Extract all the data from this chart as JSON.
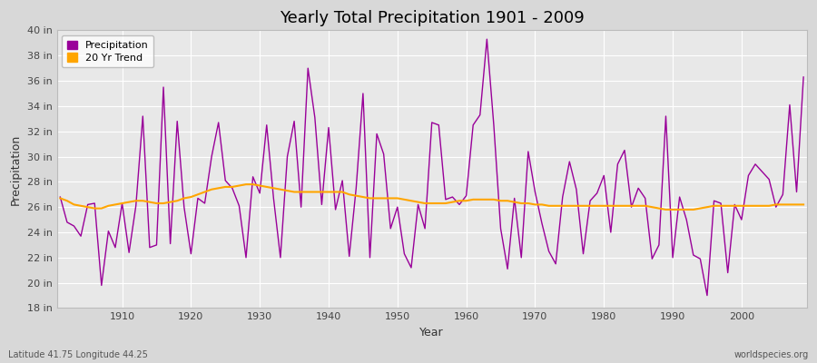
{
  "title": "Yearly Total Precipitation 1901 - 2009",
  "xlabel": "Year",
  "ylabel": "Precipitation",
  "lat_lon_label": "Latitude 41.75 Longitude 44.25",
  "source_label": "worldspecies.org",
  "years": [
    1901,
    1902,
    1903,
    1904,
    1905,
    1906,
    1907,
    1908,
    1909,
    1910,
    1911,
    1912,
    1913,
    1914,
    1915,
    1916,
    1917,
    1918,
    1919,
    1920,
    1921,
    1922,
    1923,
    1924,
    1925,
    1926,
    1927,
    1928,
    1929,
    1930,
    1931,
    1932,
    1933,
    1934,
    1935,
    1936,
    1937,
    1938,
    1939,
    1940,
    1941,
    1942,
    1943,
    1944,
    1945,
    1946,
    1947,
    1948,
    1949,
    1950,
    1951,
    1952,
    1953,
    1954,
    1955,
    1956,
    1957,
    1958,
    1959,
    1960,
    1961,
    1962,
    1963,
    1964,
    1965,
    1966,
    1967,
    1968,
    1969,
    1970,
    1971,
    1972,
    1973,
    1974,
    1975,
    1976,
    1977,
    1978,
    1979,
    1980,
    1981,
    1982,
    1983,
    1984,
    1985,
    1986,
    1987,
    1988,
    1989,
    1990,
    1991,
    1992,
    1993,
    1994,
    1995,
    1996,
    1997,
    1998,
    1999,
    2000,
    2001,
    2002,
    2003,
    2004,
    2005,
    2006,
    2007,
    2008,
    2009
  ],
  "precipitation": [
    26.8,
    24.8,
    24.5,
    23.7,
    26.2,
    26.3,
    19.8,
    24.1,
    22.8,
    26.3,
    22.4,
    26.1,
    33.2,
    22.8,
    23.0,
    35.5,
    23.1,
    32.8,
    26.0,
    22.3,
    26.7,
    26.3,
    30.0,
    32.7,
    28.1,
    27.5,
    26.1,
    22.0,
    28.4,
    27.1,
    32.5,
    26.7,
    22.0,
    30.0,
    32.8,
    26.0,
    37.0,
    33.1,
    26.2,
    32.3,
    25.8,
    28.1,
    22.1,
    27.5,
    35.0,
    22.0,
    31.8,
    30.2,
    24.3,
    26.0,
    22.3,
    21.2,
    26.2,
    24.3,
    32.7,
    32.5,
    26.6,
    26.8,
    26.2,
    26.9,
    32.5,
    33.3,
    39.3,
    32.5,
    24.3,
    21.1,
    26.7,
    22.0,
    30.4,
    27.2,
    24.7,
    22.5,
    21.5,
    26.8,
    29.6,
    27.4,
    22.3,
    26.5,
    27.1,
    28.5,
    24.0,
    29.4,
    30.5,
    26.0,
    27.5,
    26.7,
    21.9,
    23.0,
    33.2,
    22.0,
    26.8,
    25.0,
    22.2,
    21.9,
    19.0,
    26.5,
    26.3,
    20.8,
    26.2,
    25.0,
    28.5,
    29.4,
    28.8,
    28.2,
    26.0,
    27.0,
    34.1,
    27.2,
    36.3
  ],
  "trend": [
    26.7,
    26.5,
    26.2,
    26.1,
    26.0,
    25.9,
    25.9,
    26.1,
    26.2,
    26.3,
    26.4,
    26.5,
    26.5,
    26.4,
    26.3,
    26.3,
    26.4,
    26.5,
    26.7,
    26.8,
    27.0,
    27.2,
    27.4,
    27.5,
    27.6,
    27.6,
    27.7,
    27.8,
    27.8,
    27.7,
    27.6,
    27.5,
    27.4,
    27.3,
    27.2,
    27.2,
    27.2,
    27.2,
    27.2,
    27.2,
    27.2,
    27.2,
    27.0,
    26.9,
    26.8,
    26.7,
    26.7,
    26.7,
    26.7,
    26.7,
    26.6,
    26.5,
    26.4,
    26.3,
    26.3,
    26.3,
    26.3,
    26.4,
    26.5,
    26.5,
    26.6,
    26.6,
    26.6,
    26.6,
    26.5,
    26.5,
    26.4,
    26.3,
    26.3,
    26.2,
    26.2,
    26.1,
    26.1,
    26.1,
    26.1,
    26.1,
    26.1,
    26.1,
    26.1,
    26.1,
    26.1,
    26.1,
    26.1,
    26.1,
    26.1,
    26.1,
    26.0,
    25.9,
    25.8,
    25.8,
    25.8,
    25.8,
    25.8,
    25.9,
    26.0,
    26.1,
    26.1,
    26.1,
    26.1,
    26.1,
    26.1,
    26.1,
    26.1,
    26.1,
    26.2,
    26.2,
    26.2,
    26.2,
    26.2
  ],
  "precip_color": "#990099",
  "trend_color": "#FFA500",
  "fig_bg_color": "#d8d8d8",
  "plot_bg_color": "#e8e8e8",
  "grid_color": "#ffffff",
  "spine_color": "#bbbbbb",
  "ylim_min": 18,
  "ylim_max": 40,
  "ytick_values": [
    18,
    20,
    22,
    24,
    26,
    28,
    30,
    32,
    34,
    36,
    38,
    40
  ],
  "ytick_labels": [
    "18 in",
    "20 in",
    "22 in",
    "24 in",
    "26 in",
    "28 in",
    "30 in",
    "32 in",
    "34 in",
    "36 in",
    "38 in",
    "40 in"
  ],
  "xtick_values": [
    1910,
    1920,
    1930,
    1940,
    1950,
    1960,
    1970,
    1980,
    1990,
    2000
  ],
  "title_fontsize": 13,
  "label_fontsize": 9,
  "tick_fontsize": 8,
  "legend_fontsize": 8
}
